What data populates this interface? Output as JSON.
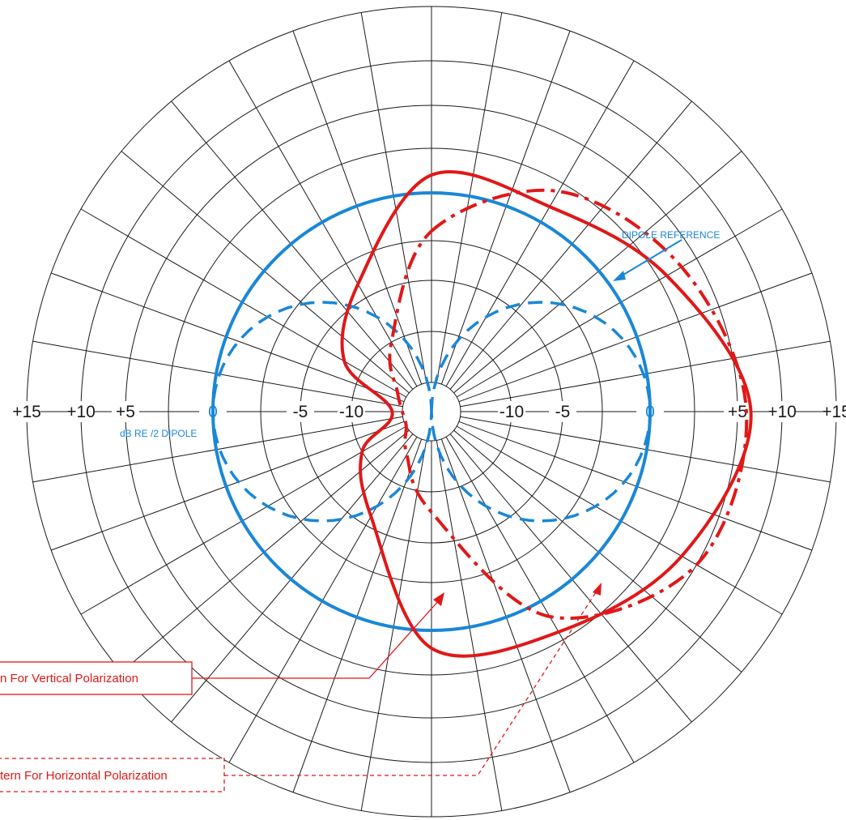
{
  "chart_data": {
    "type": "polar",
    "title": "",
    "radial_axis": {
      "unit_label": "dB RE  /2 DIPOLE",
      "tick_labels": [
        "+15",
        "+10",
        "+5",
        "0",
        "-5",
        "-10"
      ],
      "range_db": [
        -15,
        15
      ]
    },
    "angular_grid_step_deg": 10,
    "series": [
      {
        "name": "DIPOLE REFERENCE",
        "style": "solid",
        "color": "#1a87d6",
        "shape": "circle",
        "level_db": 0
      },
      {
        "name": "",
        "style": "dashed",
        "color": "#1a87d6",
        "shape": "figure-eight",
        "peak_db": 0
      },
      {
        "name": "Pattern For Vertical Polarization",
        "style": "solid",
        "color": "#e01818",
        "points": [
          {
            "angle_deg": 0,
            "db": 1
          },
          {
            "angle_deg": 30,
            "db": 1
          },
          {
            "angle_deg": 60,
            "db": 3
          },
          {
            "angle_deg": 90,
            "db": 6.5
          },
          {
            "angle_deg": 120,
            "db": 4
          },
          {
            "angle_deg": 150,
            "db": 2
          },
          {
            "angle_deg": 180,
            "db": 1
          },
          {
            "angle_deg": 210,
            "db": -6
          },
          {
            "angle_deg": 240,
            "db": -10
          },
          {
            "angle_deg": 270,
            "db": -14
          },
          {
            "angle_deg": 300,
            "db": -8
          },
          {
            "angle_deg": 330,
            "db": -4
          }
        ]
      },
      {
        "name": "Pattern For Horizontal Polarization",
        "style": "dash-dot",
        "color": "#e01818",
        "points": [
          {
            "angle_deg": 0,
            "db": -2
          },
          {
            "angle_deg": 30,
            "db": 2
          },
          {
            "angle_deg": 60,
            "db": 4
          },
          {
            "angle_deg": 90,
            "db": 6
          },
          {
            "angle_deg": 120,
            "db": 5
          },
          {
            "angle_deg": 150,
            "db": 1
          },
          {
            "angle_deg": 180,
            "db": -8
          },
          {
            "angle_deg": 210,
            "db": -13
          },
          {
            "angle_deg": 240,
            "db": -15
          },
          {
            "angle_deg": 270,
            "db": -15
          },
          {
            "angle_deg": 300,
            "db": -14
          },
          {
            "angle_deg": 330,
            "db": -10
          }
        ]
      }
    ],
    "annotations": [
      {
        "text": "DIPOLE REFERENCE",
        "color": "#1a87d6"
      },
      {
        "text": "dB RE  /2 DIPOLE",
        "color": "#1a87d6"
      },
      {
        "text": "n For Vertical Polarization",
        "color": "#e01818",
        "box": "solid"
      },
      {
        "text": "tern For Horizontal Polarization",
        "color": "#e01818",
        "box": "dashed"
      }
    ],
    "colors": {
      "grid": "#1a1a1a",
      "dipole": "#1a87d6",
      "pattern": "#e01818"
    }
  }
}
